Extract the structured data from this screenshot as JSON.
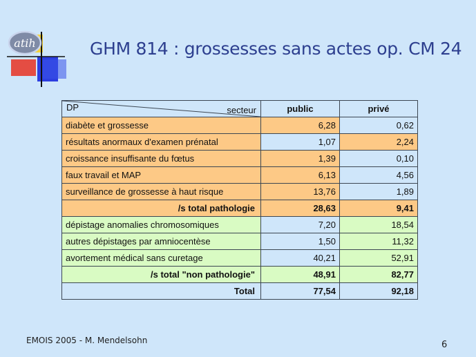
{
  "slide": {
    "title": "GHM 814 : grossesses sans actes op. CM 24",
    "logo_text": "atih",
    "footer": "EMOIS 2005 - M. Mendelsohn",
    "page_number": "6"
  },
  "table": {
    "header": {
      "dp": "DP",
      "secteur": "secteur",
      "public": "public",
      "prive": "privé"
    },
    "rows": [
      {
        "label": "diabète et grossesse",
        "public": "6,28",
        "prive": "0,62",
        "colors": [
          "orange",
          "orange",
          "blue"
        ]
      },
      {
        "label": "résultats anormaux d'examen prénatal",
        "public": "1,07",
        "prive": "2,24",
        "colors": [
          "orange",
          "blue",
          "orange"
        ]
      },
      {
        "label": "croissance insuffisante du fœtus",
        "public": "1,39",
        "prive": "0,10",
        "colors": [
          "orange",
          "orange",
          "blue"
        ]
      },
      {
        "label": "faux travail et MAP",
        "public": "6,13",
        "prive": "4,56",
        "colors": [
          "orange",
          "orange",
          "blue"
        ]
      },
      {
        "label": "surveillance de grossesse à haut risque",
        "public": "13,76",
        "prive": "1,89",
        "colors": [
          "orange",
          "orange",
          "blue"
        ]
      },
      {
        "label": "/s total pathologie",
        "public": "28,63",
        "prive": "9,41",
        "subtotal": true,
        "colors": [
          "orange",
          "orange",
          "orange"
        ]
      },
      {
        "label": "dépistage anomalies chromosomiques",
        "public": "7,20",
        "prive": "18,54",
        "colors": [
          "green",
          "blue",
          "green"
        ]
      },
      {
        "label": "autres dépistages par amniocentèse",
        "public": "1,50",
        "prive": "11,32",
        "colors": [
          "green",
          "blue",
          "green"
        ]
      },
      {
        "label": "avortement médical sans curetage",
        "public": "40,21",
        "prive": "52,91",
        "colors": [
          "green",
          "blue",
          "green"
        ]
      },
      {
        "label": "/s total \"non pathologie\"",
        "public": "48,91",
        "prive": "82,77",
        "subtotal": true,
        "colors": [
          "green",
          "green",
          "green"
        ]
      },
      {
        "label": "Total",
        "public": "77,54",
        "prive": "92,18",
        "subtotal": true,
        "colors": [
          "blue",
          "blue",
          "blue"
        ]
      }
    ]
  },
  "colors": {
    "background": "#cfe6fa",
    "orange": "#fdc986",
    "green": "#d9fbc3",
    "title": "#2d3f8f"
  }
}
